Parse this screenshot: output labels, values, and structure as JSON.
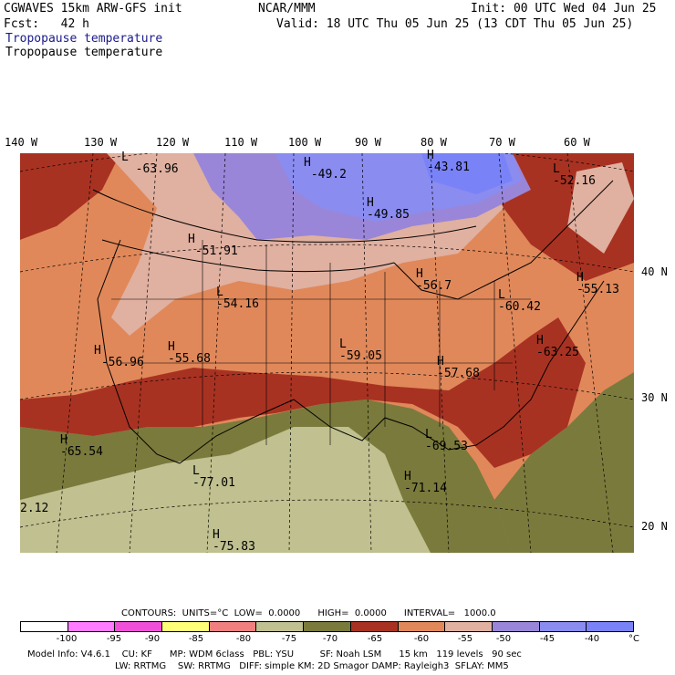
{
  "header": {
    "model": "CGWAVES 15km ARW-GFS init",
    "org": "NCAR/MMM",
    "init": "Init: 00 UTC Wed 04 Jun 25",
    "fcst": "Fcst:   42 h",
    "valid": "Valid: 18 UTC Thu 05 Jun 25 (13 CDT Thu 05 Jun 25)",
    "field_title_1": "Tropopause temperature",
    "field_title_2": "Tropopause temperature"
  },
  "map": {
    "lon_labels": [
      "140 W",
      "130 W",
      "120 W",
      "110 W",
      "100 W",
      "90 W",
      "80 W",
      "70 W",
      "60 W"
    ],
    "lat_labels": [
      "40 N",
      "30 N",
      "20 N"
    ],
    "extrema": [
      {
        "type": "L",
        "value": "-63.96"
      },
      {
        "type": "H",
        "value": "-49.2"
      },
      {
        "type": "H",
        "value": "-43.81"
      },
      {
        "type": "H",
        "value": "-49.85"
      },
      {
        "type": "L",
        "value": "-52.16"
      },
      {
        "type": "H",
        "value": "-51.91"
      },
      {
        "type": "L",
        "value": "-54.16"
      },
      {
        "type": "H",
        "value": "-56.7"
      },
      {
        "type": "L",
        "value": "-60.42"
      },
      {
        "type": "H",
        "value": "-55.13"
      },
      {
        "type": "H",
        "value": "-56.96"
      },
      {
        "type": "H",
        "value": "-55.68"
      },
      {
        "type": "L",
        "value": "-59.05"
      },
      {
        "type": "H",
        "value": "-57.68"
      },
      {
        "type": "H",
        "value": "-63.25"
      },
      {
        "type": "H",
        "value": "-65.54"
      },
      {
        "type": "L",
        "value": "-77.01"
      },
      {
        "type": "L",
        "value": "-69.53"
      },
      {
        "type": "H",
        "value": "-71.14"
      },
      {
        "type": "H",
        "value": "-75.83"
      },
      {
        "type": "",
        "value": "2.12"
      }
    ]
  },
  "contours": {
    "line": "CONTOURS:  UNITS=°C  LOW=  0.0000      HIGH=  0.0000      INTERVAL=   1000.0"
  },
  "colorbar": {
    "labels": [
      "-100",
      "-95",
      "-90",
      "-85",
      "-80",
      "-75",
      "-70",
      "-65",
      "-60",
      "-55",
      "-50",
      "-45",
      "-40",
      "°C"
    ],
    "colors": [
      "#ffffff",
      "#ff7bff",
      "#f050d8",
      "#ffff78",
      "#f08080",
      "#c0c090",
      "#7a7a3c",
      "#a83222",
      "#e0885a",
      "#e0b0a0",
      "#9a86d8",
      "#8a8cf0",
      "#7a82f8"
    ]
  },
  "footer": {
    "line1": "Model Info: V4.6.1    CU: KF      MP: WDM 6class   PBL: YSU         SF: Noah LSM      15 km   119 levels   90 sec",
    "line2": "LW: RRTMG    SW: RRTMG   DIFF: simple KM: 2D Smagor DAMP: Rayleigh3  SFLAY: MM5"
  }
}
